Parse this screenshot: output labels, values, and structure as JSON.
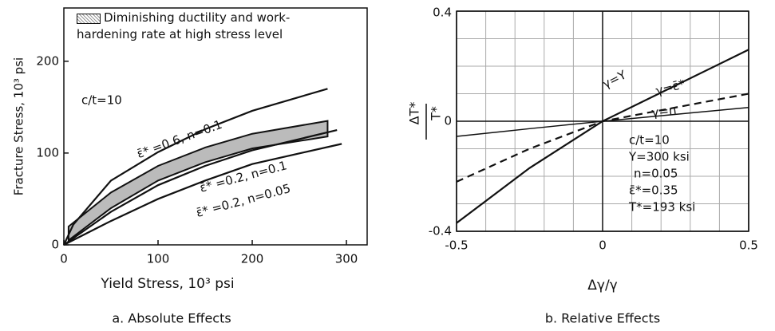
{
  "chart_data": [
    {
      "type": "line",
      "title": "a. Absolute Effects",
      "xlabel": "Yield Stress, 10³ psi",
      "ylabel": "Fracture Stress, 10³ psi",
      "xlim": [
        0,
        322
      ],
      "ylim": [
        0,
        258
      ],
      "xticks": [
        0,
        100,
        200,
        300
      ],
      "yticks": [
        0,
        100,
        200
      ],
      "grid": false,
      "band": {
        "name": "Diminishing ductility and work-hardening rate at high stress level",
        "color": "#bbbbbb",
        "x": [
          5,
          50,
          100,
          150,
          200,
          280
        ],
        "high": [
          20,
          57,
          86,
          106,
          121,
          135
        ],
        "low": [
          5,
          40,
          70,
          90,
          105,
          118
        ]
      },
      "series": [
        {
          "name": "ε̄* =0.6, n=0.1",
          "color": "#111111",
          "dash": "solid",
          "x": [
            0,
            10,
            50,
            100,
            150,
            200,
            280
          ],
          "values": [
            0,
            22,
            70,
            101,
            126,
            146,
            170
          ]
        },
        {
          "name": "ε̄* =0.2, n=0.1",
          "color": "#111111",
          "dash": "solid",
          "x": [
            0,
            50,
            100,
            150,
            200,
            290
          ],
          "values": [
            0,
            36,
            65,
            86,
            103,
            125
          ]
        },
        {
          "name": "ε̄* =0.2, n=0.05",
          "color": "#111111",
          "dash": "solid",
          "x": [
            0,
            50,
            100,
            150,
            200,
            295
          ],
          "values": [
            0,
            26,
            50,
            70,
            88,
            110
          ]
        }
      ],
      "annotations": [
        "c/t=10"
      ]
    },
    {
      "type": "line",
      "title": "b. Relative Effects",
      "xlabel": "Δγ/γ",
      "ylabel_numerator": "ΔT*",
      "ylabel_denominator": "T*",
      "xlim": [
        -0.5,
        0.5
      ],
      "ylim": [
        -0.4,
        0.4
      ],
      "xticks": [
        -0.5,
        0,
        0.5
      ],
      "yticks": [
        -0.4,
        0,
        0.4
      ],
      "grid": true,
      "xgrid": [
        -0.4,
        -0.3,
        -0.2,
        -0.1,
        0.1,
        0.2,
        0.3,
        0.4
      ],
      "ygrid": [
        -0.3,
        -0.2,
        -0.1,
        0.1,
        0.2,
        0.3
      ],
      "series": [
        {
          "name": "γ=Y",
          "color": "#111111",
          "dash": "solid",
          "x": [
            -0.5,
            -0.25,
            0,
            0.25,
            0.5
          ],
          "values": [
            -0.37,
            -0.17,
            0,
            0.13,
            0.26
          ]
        },
        {
          "name": "γ=ε̄*",
          "color": "#111111",
          "dash": "dashed",
          "x": [
            -0.5,
            -0.25,
            0,
            0.25,
            0.5
          ],
          "values": [
            -0.22,
            -0.1,
            0,
            0.05,
            0.1
          ]
        },
        {
          "name": "γ=n",
          "color": "#111111",
          "dash": "solid",
          "x": [
            -0.5,
            -0.25,
            0,
            0.25,
            0.5
          ],
          "values": [
            -0.055,
            -0.027,
            0,
            0.025,
            0.05
          ]
        }
      ],
      "annotations": [
        "c/t=10",
        "Y=300 ksi",
        "n=0.05",
        "ε̄*=0.35",
        "T*=193 ksi"
      ]
    }
  ]
}
